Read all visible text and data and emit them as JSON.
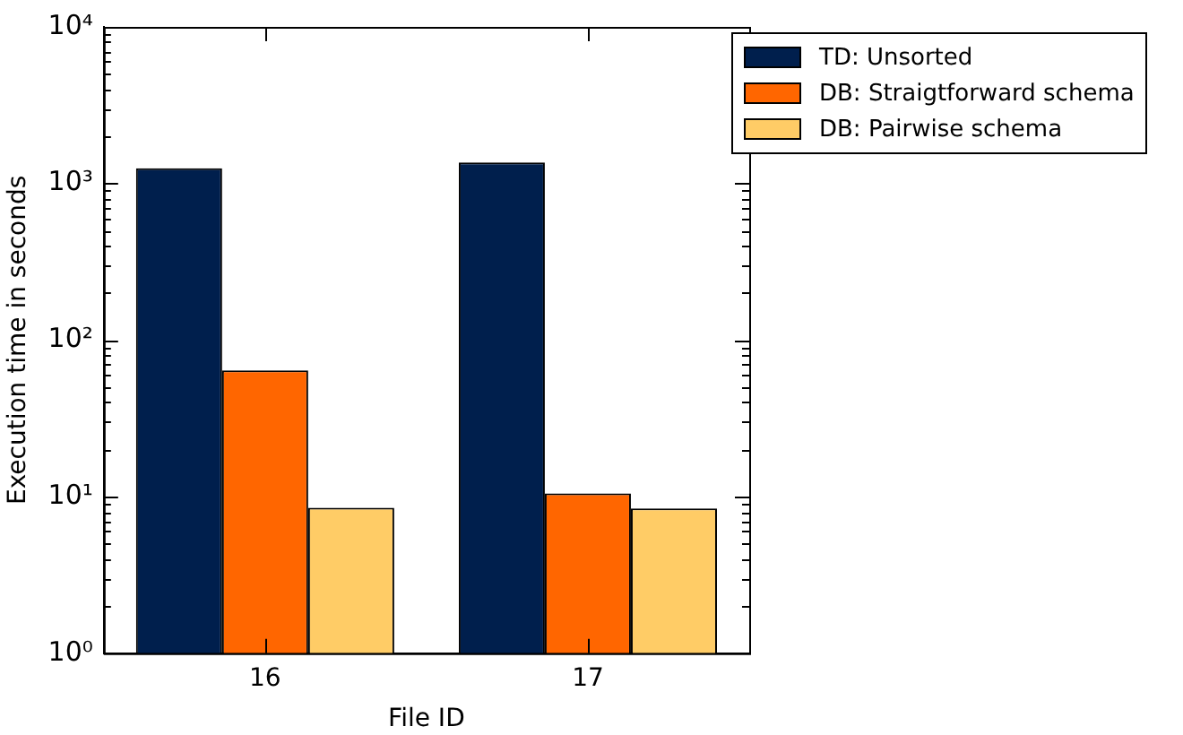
{
  "chart_data": {
    "type": "bar",
    "xlabel": "File ID",
    "ylabel": "Execution time in seconds",
    "categories": [
      "16",
      "17"
    ],
    "series": [
      {
        "name": "TD: Unsorted",
        "color": "#001f4d",
        "values": [
          1250,
          1360
        ]
      },
      {
        "name": "DB: Straigtforward schema",
        "color": "#ff6600",
        "values": [
          64,
          10.5
        ]
      },
      {
        "name": "DB: Pairwise schema",
        "color": "#ffcc66",
        "values": [
          8.5,
          8.4
        ]
      }
    ],
    "log": "y",
    "ylim": [
      1,
      10000
    ],
    "yticks": [
      {
        "value": 1,
        "label": "10⁰"
      },
      {
        "value": 10,
        "label": "10¹"
      },
      {
        "value": 100,
        "label": "10²"
      },
      {
        "value": 1000,
        "label": "10³"
      },
      {
        "value": 10000,
        "label": "10⁴"
      }
    ],
    "grid": false,
    "legend": "right"
  }
}
